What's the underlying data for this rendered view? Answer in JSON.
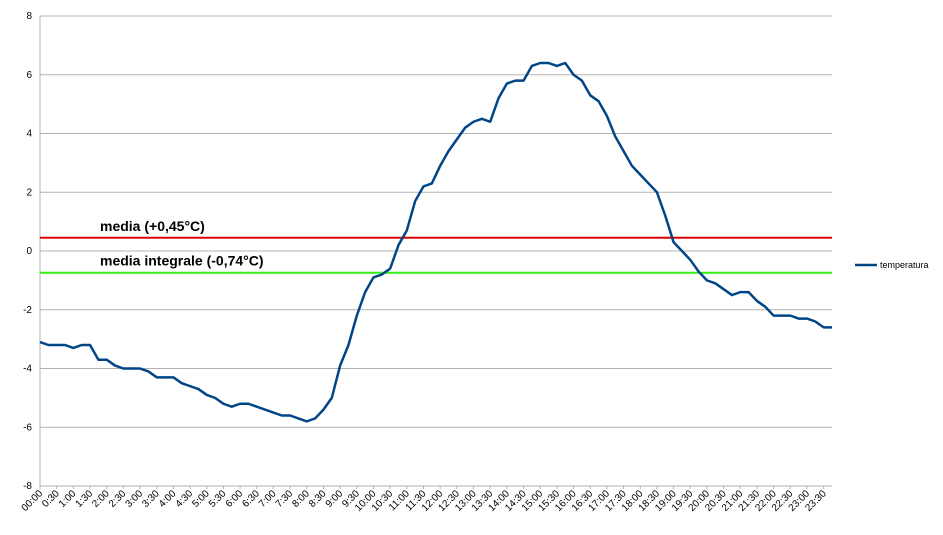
{
  "chart_data": {
    "type": "line",
    "categories": [
      "00:00",
      null,
      "0:30",
      null,
      "1:00",
      null,
      "1:30",
      null,
      "2:00",
      null,
      "2:30",
      null,
      "3:00",
      null,
      "3:30",
      null,
      "4:00",
      null,
      "4:30",
      null,
      "5:00",
      null,
      "5:30",
      null,
      "6:00",
      null,
      "6:30",
      null,
      "7:00",
      null,
      "7:30",
      null,
      "8:00",
      null,
      "8:30",
      null,
      "9:00",
      null,
      "9:30",
      null,
      "10:00",
      null,
      "10:30",
      null,
      "11:00",
      null,
      "11:30",
      null,
      "12:00",
      null,
      "12:30",
      null,
      "13:00",
      null,
      "13:30",
      null,
      "14:00",
      null,
      "14:30",
      null,
      "15:00",
      null,
      "15:30",
      null,
      "16:00",
      null,
      "16:30",
      null,
      "17:00",
      null,
      "17:30",
      null,
      "18:00",
      null,
      "18:30",
      null,
      "19:00",
      null,
      "19:30",
      null,
      "20:00",
      null,
      "20:30",
      null,
      "21:00",
      null,
      "21:30",
      null,
      "22:00",
      null,
      "22:30",
      null,
      "23:00",
      null,
      "23:30",
      null
    ],
    "series": [
      {
        "name": "temperatura",
        "color": "#004586",
        "values": [
          -3.1,
          -3.2,
          -3.2,
          -3.2,
          -3.3,
          -3.2,
          -3.2,
          -3.7,
          -3.7,
          -3.9,
          -4.0,
          -4.0,
          -4.0,
          -4.1,
          -4.3,
          -4.3,
          -4.3,
          -4.5,
          -4.6,
          -4.7,
          -4.9,
          -5.0,
          -5.2,
          -5.3,
          -5.2,
          -5.2,
          -5.3,
          -5.4,
          -5.5,
          -5.6,
          -5.6,
          -5.7,
          -5.8,
          -5.7,
          -5.4,
          -5.0,
          -3.9,
          -3.2,
          -2.2,
          -1.4,
          -0.9,
          -0.8,
          -0.6,
          0.2,
          0.7,
          1.7,
          2.2,
          2.3,
          2.9,
          3.4,
          3.8,
          4.2,
          4.4,
          4.5,
          4.4,
          5.2,
          5.7,
          5.8,
          5.8,
          6.3,
          6.4,
          6.4,
          6.3,
          6.4,
          6.0,
          5.8,
          5.3,
          5.1,
          4.6,
          3.9,
          3.4,
          2.9,
          2.6,
          2.3,
          2.0,
          1.2,
          0.3,
          0.0,
          -0.3,
          -0.7,
          -1.0,
          -1.1,
          -1.3,
          -1.5,
          -1.4,
          -1.4,
          -1.7,
          -1.9,
          -2.2,
          -2.2,
          -2.2,
          -2.3,
          -2.3,
          -2.4,
          -2.6,
          -2.6
        ]
      }
    ],
    "reference_lines": [
      {
        "value": 0.45,
        "label": "media (+0,45°C)",
        "color": "#e00000"
      },
      {
        "value": -0.74,
        "label": "media integrale (-0,74°C)",
        "color": "#33ee11"
      }
    ],
    "ylim": [
      -8,
      8
    ],
    "yticks": [
      -8,
      -6,
      -4,
      -2,
      0,
      2,
      4,
      6,
      8
    ],
    "grid": true,
    "legend": "right"
  }
}
